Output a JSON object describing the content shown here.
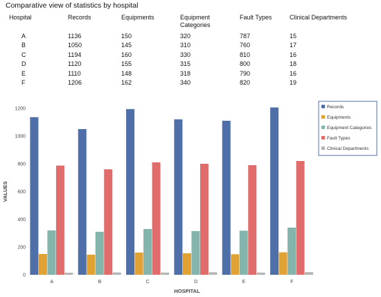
{
  "title": "Comparative view of statistics by hospital",
  "table": {
    "headers": [
      "Hospital",
      "Records",
      "Equipments",
      "Equipment\nCategories",
      "Fault Types",
      "Clinical Departments"
    ],
    "rows": [
      [
        "A",
        "1136",
        "150",
        "320",
        "787",
        "15"
      ],
      [
        "B",
        "1050",
        "145",
        "310",
        "760",
        "17"
      ],
      [
        "C",
        "1194",
        "160",
        "330",
        "810",
        "16"
      ],
      [
        "D",
        "1120",
        "155",
        "315",
        "800",
        "18"
      ],
      [
        "E",
        "1110",
        "148",
        "318",
        "790",
        "16"
      ],
      [
        "F",
        "1206",
        "162",
        "340",
        "820",
        "19"
      ]
    ]
  },
  "chart_data": {
    "type": "bar",
    "categories": [
      "A",
      "B",
      "C",
      "D",
      "E",
      "F"
    ],
    "series": [
      {
        "name": "Records",
        "color": "#4f6fa8",
        "values": [
          1136,
          1050,
          1194,
          1120,
          1110,
          1206
        ]
      },
      {
        "name": "Equipments",
        "color": "#e0a234",
        "values": [
          150,
          145,
          160,
          155,
          148,
          162
        ]
      },
      {
        "name": "Equipment Categories",
        "color": "#84b5ad",
        "values": [
          320,
          310,
          330,
          315,
          318,
          340
        ]
      },
      {
        "name": "Fault Types",
        "color": "#e06c6c",
        "values": [
          787,
          760,
          810,
          800,
          790,
          820
        ]
      },
      {
        "name": "Clinical Departments",
        "color": "#b5b5b5",
        "values": [
          15,
          17,
          16,
          18,
          16,
          19
        ]
      }
    ],
    "xlabel": "HOSPITAL",
    "ylabel": "VALUES",
    "ylim": [
      0,
      1200
    ],
    "yticks": [
      0,
      200,
      400,
      600,
      800,
      1000,
      1200
    ],
    "legend_position": "top-right",
    "grid": false
  }
}
